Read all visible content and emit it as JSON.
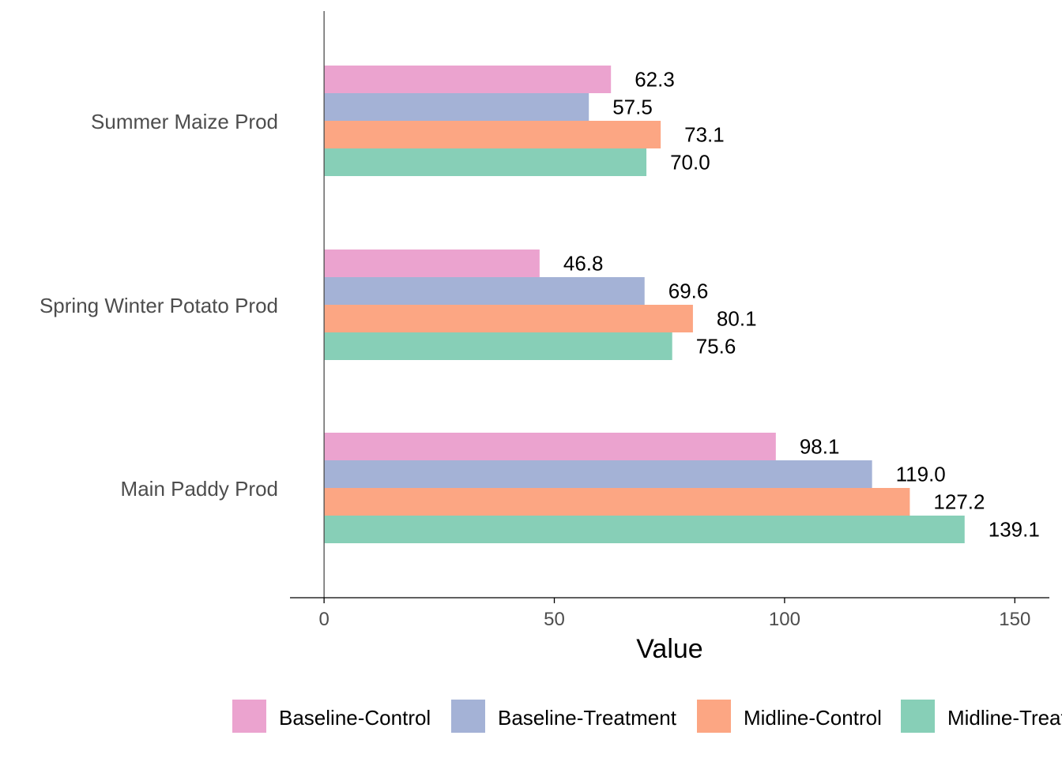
{
  "chart_data": {
    "type": "bar",
    "orientation": "horizontal",
    "categories": [
      "Summer Maize Prod",
      "Spring Winter Potato Prod",
      "Main Paddy Prod"
    ],
    "series": [
      {
        "name": "Baseline-Control",
        "color": "#eba3cf",
        "values": [
          62.3,
          46.8,
          98.1
        ],
        "labels": [
          "62.3",
          "46.8",
          "98.1"
        ]
      },
      {
        "name": "Baseline-Treatment",
        "color": "#a4b2d6",
        "values": [
          57.5,
          69.6,
          119.0
        ],
        "labels": [
          "57.5",
          "69.6",
          "119.0"
        ]
      },
      {
        "name": "Midline-Control",
        "color": "#fca683",
        "values": [
          73.1,
          80.1,
          127.2
        ],
        "labels": [
          "73.1",
          "80.1",
          "127.2"
        ]
      },
      {
        "name": "Midline-Treatment",
        "color": "#87cfb7",
        "values": [
          70.0,
          75.6,
          139.1
        ],
        "labels": [
          "70.0",
          "75.6",
          "139.1"
        ]
      }
    ],
    "xlabel": "Value",
    "ylabel": "",
    "xlim": [
      -7.4,
      157.5
    ],
    "xticks": [
      0,
      50,
      100,
      150
    ],
    "grid": false,
    "legend_position": "bottom"
  }
}
